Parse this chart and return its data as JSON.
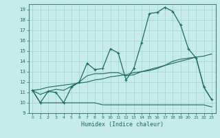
{
  "title": "",
  "xlabel": "Humidex (Indice chaleur)",
  "background_color": "#c8eae8",
  "grid_color": "#9dd4d0",
  "line_color": "#1a6b60",
  "xlim": [
    -0.5,
    23.5
  ],
  "ylim": [
    9,
    19.5
  ],
  "xticks": [
    0,
    1,
    2,
    3,
    4,
    5,
    6,
    7,
    8,
    9,
    10,
    11,
    12,
    13,
    14,
    15,
    16,
    17,
    18,
    19,
    20,
    21,
    22,
    23
  ],
  "yticks": [
    9,
    10,
    11,
    12,
    13,
    14,
    15,
    16,
    17,
    18,
    19
  ],
  "main_x": [
    0,
    1,
    2,
    3,
    4,
    5,
    6,
    7,
    8,
    9,
    10,
    11,
    12,
    13,
    14,
    15,
    16,
    17,
    18,
    19,
    20,
    21,
    22,
    23
  ],
  "main_y": [
    11.2,
    10.0,
    11.1,
    11.0,
    10.0,
    11.5,
    12.0,
    13.8,
    13.2,
    13.3,
    15.2,
    14.8,
    12.2,
    13.3,
    15.8,
    18.6,
    18.7,
    19.2,
    18.8,
    17.5,
    15.2,
    14.3,
    11.5,
    10.3
  ],
  "smooth_x": [
    0,
    1,
    2,
    3,
    4,
    5,
    6,
    7,
    8,
    9,
    10,
    11,
    12,
    13,
    14,
    15,
    16,
    17,
    18,
    19,
    20,
    21,
    22,
    23
  ],
  "smooth_y": [
    11.2,
    10.8,
    11.1,
    11.3,
    11.2,
    11.6,
    12.0,
    12.6,
    12.8,
    12.8,
    12.9,
    12.9,
    12.6,
    12.7,
    13.0,
    13.1,
    13.3,
    13.6,
    14.0,
    14.2,
    14.3,
    14.4,
    11.5,
    10.3
  ],
  "flat_x": [
    0,
    1,
    2,
    3,
    4,
    5,
    6,
    7,
    8,
    9,
    10,
    11,
    12,
    13,
    14,
    15,
    16,
    17,
    18,
    19,
    20,
    21,
    22,
    23
  ],
  "flat_y": [
    11.2,
    10.0,
    10.0,
    10.0,
    10.0,
    10.0,
    10.0,
    10.0,
    10.0,
    9.8,
    9.8,
    9.8,
    9.8,
    9.8,
    9.8,
    9.8,
    9.8,
    9.8,
    9.8,
    9.8,
    9.8,
    9.8,
    9.8,
    9.6
  ],
  "trend_x": [
    0,
    1,
    2,
    3,
    4,
    5,
    6,
    7,
    8,
    9,
    10,
    11,
    12,
    13,
    14,
    15,
    16,
    17,
    18,
    19,
    20,
    21,
    22,
    23
  ],
  "trend_y": [
    11.2,
    11.3,
    11.5,
    11.6,
    11.7,
    11.8,
    11.9,
    12.0,
    12.2,
    12.3,
    12.5,
    12.6,
    12.7,
    12.9,
    13.0,
    13.2,
    13.4,
    13.6,
    13.8,
    14.0,
    14.2,
    14.4,
    14.5,
    14.7
  ]
}
